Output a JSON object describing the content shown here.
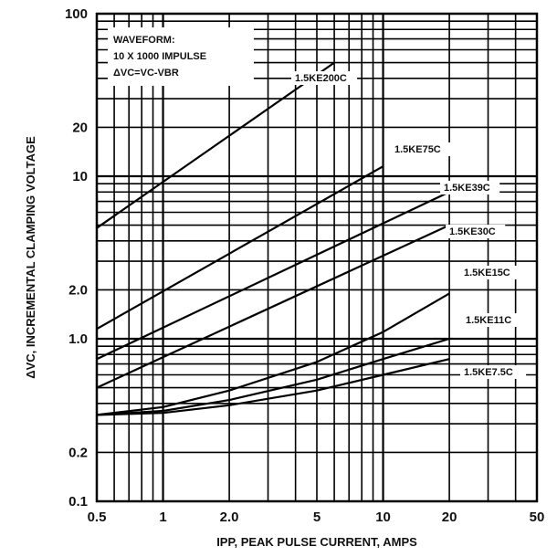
{
  "chart_data": {
    "type": "line",
    "title": "",
    "xlabel": "IPP, PEAK PULSE CURRENT, AMPS",
    "ylabel": "ΔVC, INCREMENTAL CLAMPING VOLTAGE",
    "xscale": "log",
    "yscale": "log",
    "xlim": [
      0.5,
      50
    ],
    "ylim": [
      0.1,
      100
    ],
    "grid": true,
    "x_ticks": [
      {
        "value": 0.5,
        "label": "0.5"
      },
      {
        "value": 1,
        "label": "1"
      },
      {
        "value": 2,
        "label": "2.0"
      },
      {
        "value": 5,
        "label": "5"
      },
      {
        "value": 10,
        "label": "10"
      },
      {
        "value": 20,
        "label": "20"
      },
      {
        "value": 50,
        "label": "50"
      }
    ],
    "y_ticks": [
      {
        "value": 0.1,
        "label": "0.1"
      },
      {
        "value": 0.2,
        "label": "0.2"
      },
      {
        "value": 1,
        "label": "1.0"
      },
      {
        "value": 2,
        "label": "2.0"
      },
      {
        "value": 10,
        "label": "10"
      },
      {
        "value": 20,
        "label": "20"
      },
      {
        "value": 100,
        "label": "100"
      }
    ],
    "annotation": {
      "lines": [
        "WAVEFORM:",
        "10 X 1000 IMPULSE",
        "ΔVC=VC-VBR"
      ]
    },
    "series": [
      {
        "name": "1.5KE200C",
        "x": [
          0.5,
          6
        ],
        "y": [
          4.8,
          50
        ]
      },
      {
        "name": "1.5KE75C",
        "x": [
          0.5,
          10
        ],
        "y": [
          1.15,
          11.5
        ]
      },
      {
        "name": "1.5KE39C",
        "x": [
          0.5,
          20
        ],
        "y": [
          0.75,
          8
        ]
      },
      {
        "name": "1.5KE30C",
        "x": [
          0.5,
          20
        ],
        "y": [
          0.5,
          5
        ]
      },
      {
        "name": "1.5KE15C",
        "x": [
          0.5,
          1,
          2,
          5,
          10,
          20
        ],
        "y": [
          0.34,
          0.38,
          0.48,
          0.72,
          1.1,
          1.9
        ]
      },
      {
        "name": "1.5KE11C",
        "x": [
          0.5,
          1,
          2,
          5,
          10,
          20
        ],
        "y": [
          0.34,
          0.36,
          0.42,
          0.56,
          0.75,
          1.0
        ]
      },
      {
        "name": "1.5KE7.5C",
        "x": [
          0.5,
          1,
          2,
          5,
          10,
          20
        ],
        "y": [
          0.34,
          0.35,
          0.39,
          0.48,
          0.6,
          0.75
        ]
      }
    ]
  }
}
